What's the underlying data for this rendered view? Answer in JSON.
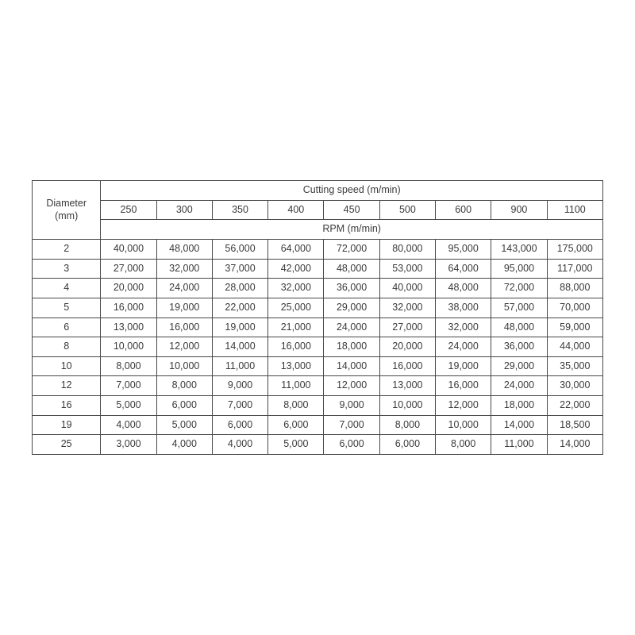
{
  "table": {
    "type": "table",
    "diameter_header_line1": "Diameter",
    "diameter_header_line2": "(mm)",
    "cutting_speed_header": "Cutting speed (m/min)",
    "rpm_header": "RPM (m/min)",
    "border_color": "#474747",
    "text_color": "#3a3a3a",
    "background_color": "#ffffff",
    "font_size_pt": 9.5,
    "font_weight": 300,
    "cutting_speeds": [
      "250",
      "300",
      "350",
      "400",
      "450",
      "500",
      "600",
      "900",
      "1100"
    ],
    "diameters": [
      "2",
      "3",
      "4",
      "5",
      "6",
      "8",
      "10",
      "12",
      "16",
      "19",
      "25"
    ],
    "rows": [
      [
        "40,000",
        "48,000",
        "56,000",
        "64,000",
        "72,000",
        "80,000",
        "95,000",
        "143,000",
        "175,000"
      ],
      [
        "27,000",
        "32,000",
        "37,000",
        "42,000",
        "48,000",
        "53,000",
        "64,000",
        "95,000",
        "117,000"
      ],
      [
        "20,000",
        "24,000",
        "28,000",
        "32,000",
        "36,000",
        "40,000",
        "48,000",
        "72,000",
        "88,000"
      ],
      [
        "16,000",
        "19,000",
        "22,000",
        "25,000",
        "29,000",
        "32,000",
        "38,000",
        "57,000",
        "70,000"
      ],
      [
        "13,000",
        "16,000",
        "19,000",
        "21,000",
        "24,000",
        "27,000",
        "32,000",
        "48,000",
        "59,000"
      ],
      [
        "10,000",
        "12,000",
        "14,000",
        "16,000",
        "18,000",
        "20,000",
        "24,000",
        "36,000",
        "44,000"
      ],
      [
        "8,000",
        "10,000",
        "11,000",
        "13,000",
        "14,000",
        "16,000",
        "19,000",
        "29,000",
        "35,000"
      ],
      [
        "7,000",
        "8,000",
        "9,000",
        "11,000",
        "12,000",
        "13,000",
        "16,000",
        "24,000",
        "30,000"
      ],
      [
        "5,000",
        "6,000",
        "7,000",
        "8,000",
        "9,000",
        "10,000",
        "12,000",
        "18,000",
        "22,000"
      ],
      [
        "4,000",
        "5,000",
        "6,000",
        "6,000",
        "7,000",
        "8,000",
        "10,000",
        "14,000",
        "18,500"
      ],
      [
        "3,000",
        "4,000",
        "4,000",
        "5,000",
        "6,000",
        "6,000",
        "8,000",
        "11,000",
        "14,000"
      ]
    ]
  }
}
